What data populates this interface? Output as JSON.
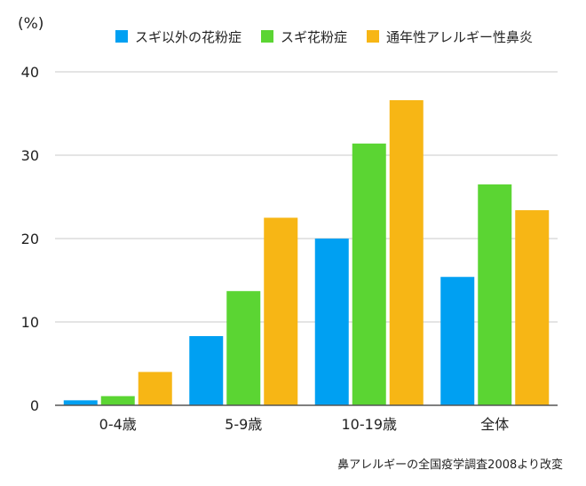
{
  "chart_data": {
    "type": "bar",
    "unit": "(%)",
    "categories": [
      "0-4歳",
      "5-9歳",
      "10-19歳",
      "全体"
    ],
    "series": [
      {
        "name": "スギ以外の花粉症",
        "color": "#00a0f2",
        "values": [
          0.6,
          8.3,
          20.0,
          15.4
        ]
      },
      {
        "name": "スギ花粉症",
        "color": "#5bd533",
        "values": [
          1.1,
          13.7,
          31.4,
          26.5
        ]
      },
      {
        "name": "通年性アレルギー性鼻炎",
        "color": "#f7b615",
        "values": [
          4.0,
          22.5,
          36.6,
          23.4
        ]
      }
    ],
    "ylim": [
      0,
      40
    ],
    "yticks": [
      0,
      10,
      20,
      30,
      40
    ],
    "grid": true,
    "legend_position": "top",
    "source": "鼻アレルギーの全国疫学調査2008より改変"
  }
}
